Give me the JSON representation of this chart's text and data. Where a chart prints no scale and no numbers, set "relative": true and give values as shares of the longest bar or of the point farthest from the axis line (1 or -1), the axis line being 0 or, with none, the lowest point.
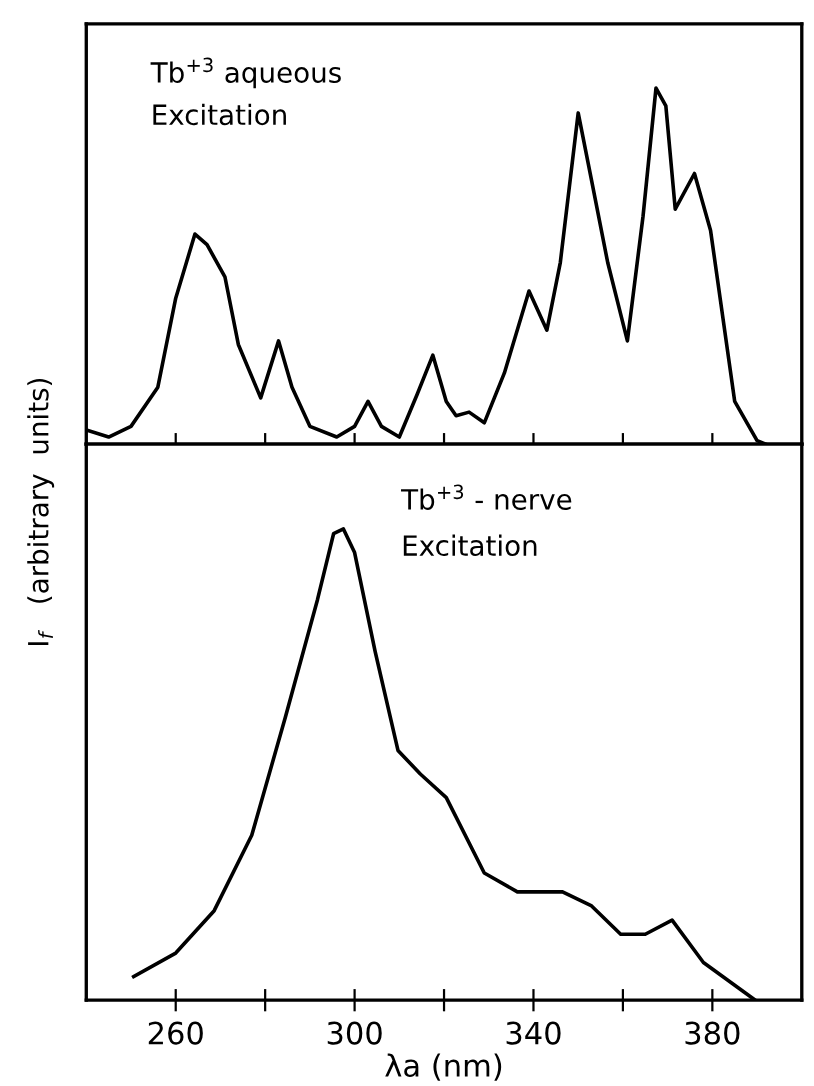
{
  "chart_data": [
    {
      "type": "line",
      "relative": true,
      "annotations": [
        "Tb$^{+3}$ aqueous",
        "Excitation"
      ],
      "xlim": [
        240,
        400
      ],
      "xticks": [
        {
          "value": 260,
          "label": null
        },
        {
          "value": 280,
          "label": null
        },
        {
          "value": 300,
          "label": null
        },
        {
          "value": 320,
          "label": null
        },
        {
          "value": 340,
          "label": null
        },
        {
          "value": 360,
          "label": null
        },
        {
          "value": 380,
          "label": null
        }
      ],
      "tick_labels": false,
      "grid": false,
      "legend": false,
      "marker": "none",
      "line_style": "solid",
      "series": [
        {
          "color": "#000000",
          "x": [
            240,
            245,
            250,
            256,
            260,
            264.3,
            267,
            271,
            274,
            279,
            283,
            286,
            290,
            296,
            300,
            303,
            306,
            310,
            314,
            317.5,
            320.5,
            322.7,
            325.6,
            329,
            333.5,
            339,
            343,
            346,
            350,
            353,
            356.6,
            361,
            364.5,
            367.4,
            369.6,
            371.7,
            376,
            379.6,
            385,
            390,
            392
          ],
          "values": [
            0.04,
            0.02,
            0.05,
            0.16,
            0.41,
            0.59,
            0.56,
            0.47,
            0.28,
            0.13,
            0.29,
            0.16,
            0.05,
            0.02,
            0.05,
            0.12,
            0.05,
            0.02,
            0.14,
            0.25,
            0.12,
            0.08,
            0.09,
            0.06,
            0.2,
            0.43,
            0.32,
            0.51,
            0.93,
            0.74,
            0.51,
            0.29,
            0.64,
            1.0,
            0.95,
            0.66,
            0.76,
            0.6,
            0.12,
            0.01,
            0
          ]
        }
      ]
    },
    {
      "type": "line",
      "relative": true,
      "annotations": [
        "Tb$^{+3}$ - nerve",
        "Excitation"
      ],
      "xlabel": "λa (nm)",
      "ylabel": "I$_{f}$   (arbitrary  units)",
      "xlim": [
        240,
        400
      ],
      "xticks": [
        260,
        {
          "value": 280,
          "label": null
        },
        300,
        {
          "value": 320,
          "label": null
        },
        340,
        {
          "value": 360,
          "label": null
        },
        380
      ],
      "tick_labels": "x",
      "grid": false,
      "legend": false,
      "marker": "none",
      "line_style": "solid",
      "series": [
        {
          "color": "#000000",
          "x": [
            250.6,
            260,
            268.6,
            277,
            284.5,
            291.7,
            295.3,
            297.5,
            300,
            304.6,
            309.7,
            314.7,
            320.5,
            329,
            336.4,
            346.5,
            353,
            359.5,
            365,
            371,
            378,
            389.6
          ],
          "values": [
            0.05,
            0.1,
            0.19,
            0.35,
            0.6,
            0.85,
            0.99,
            1.0,
            0.95,
            0.74,
            0.53,
            0.48,
            0.43,
            0.27,
            0.23,
            0.23,
            0.2,
            0.14,
            0.14,
            0.17,
            0.08,
            0.0
          ]
        }
      ]
    }
  ]
}
